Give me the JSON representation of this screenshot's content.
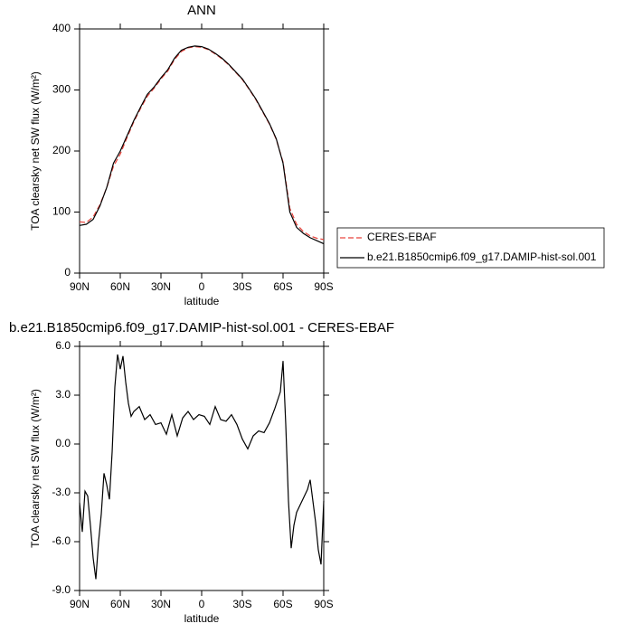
{
  "chart_data": [
    {
      "type": "line",
      "title": "ANN",
      "xlabel": "latitude",
      "ylabel": "TOA clearsky net SW flux (W/m²)",
      "x": [
        90,
        85,
        80,
        75,
        70,
        65,
        60,
        55,
        50,
        45,
        40,
        35,
        30,
        25,
        20,
        15,
        10,
        5,
        0,
        -5,
        -10,
        -15,
        -20,
        -25,
        -30,
        -35,
        -40,
        -45,
        -50,
        -55,
        -60,
        -65,
        -70,
        -75,
        -80,
        -85,
        -90
      ],
      "series": [
        {
          "name": "CERES-EBAF",
          "color": "#e8413a",
          "line_style": "dashed",
          "values": [
            84,
            83,
            92,
            112,
            140,
            175,
            195,
            222,
            248,
            270,
            290,
            303,
            318,
            331,
            350,
            363,
            369,
            371,
            370,
            366,
            359,
            351,
            341,
            329,
            317,
            301,
            284,
            264,
            244,
            219,
            182,
            106,
            80,
            68,
            61,
            57,
            55
          ]
        },
        {
          "name": "b.e21.B1850cmip6.f09_g17.DAMIP-hist-sol.001",
          "color": "#000000",
          "line_style": "solid",
          "values": [
            78,
            80,
            88,
            110,
            140,
            180,
            200,
            225,
            250,
            272,
            293,
            305,
            320,
            333,
            352,
            365,
            370,
            372,
            371,
            367,
            360,
            352,
            342,
            330,
            318,
            302,
            285,
            265,
            245,
            220,
            180,
            100,
            75,
            65,
            58,
            53,
            48
          ]
        }
      ],
      "xlim": [
        90,
        -90
      ],
      "xticks": [
        {
          "value": 90,
          "label": "90N"
        },
        {
          "value": 60,
          "label": "60N"
        },
        {
          "value": 30,
          "label": "30N"
        },
        0,
        {
          "value": -30,
          "label": "30S"
        },
        {
          "value": -60,
          "label": "60S"
        },
        {
          "value": -90,
          "label": "90S"
        }
      ],
      "ylim": [
        0,
        400
      ],
      "yticks": [
        0,
        100,
        200,
        300,
        400
      ],
      "legend": "right"
    },
    {
      "type": "line",
      "title": "b.e21.B1850cmip6.f09_g17.DAMIP-hist-sol.001 - CERES-EBAF",
      "xlabel": "latitude",
      "ylabel": "TOA clearsky net SW flux (W/m²)",
      "x": [
        90,
        88,
        86,
        84,
        82,
        80,
        78,
        76,
        74,
        72,
        70,
        68,
        66,
        64,
        62,
        60,
        58,
        56,
        54,
        52,
        50,
        46,
        42,
        38,
        34,
        30,
        26,
        22,
        18,
        14,
        10,
        6,
        2,
        -2,
        -6,
        -10,
        -14,
        -18,
        -22,
        -26,
        -30,
        -34,
        -38,
        -42,
        -46,
        -50,
        -54,
        -58,
        -60,
        -62,
        -64,
        -66,
        -68,
        -70,
        -74,
        -78,
        -80,
        -82,
        -84,
        -86,
        -88,
        -90
      ],
      "series": [
        {
          "color": "#000000",
          "line_style": "solid",
          "values": [
            -3.6,
            -5.4,
            -2.9,
            -3.2,
            -5.0,
            -7.0,
            -8.3,
            -6.0,
            -4.3,
            -1.8,
            -2.5,
            -3.4,
            -0.5,
            3.5,
            5.5,
            4.6,
            5.4,
            3.8,
            2.5,
            1.7,
            2.0,
            2.3,
            1.5,
            1.8,
            1.2,
            1.3,
            0.6,
            1.8,
            0.5,
            1.6,
            2.0,
            1.5,
            1.8,
            1.7,
            1.2,
            2.3,
            1.5,
            1.4,
            1.8,
            1.2,
            0.3,
            -0.3,
            0.5,
            0.8,
            0.7,
            1.3,
            2.2,
            3.2,
            5.1,
            1.2,
            -3.5,
            -6.4,
            -5.0,
            -4.2,
            -3.5,
            -2.8,
            -2.2,
            -3.5,
            -4.8,
            -6.5,
            -7.4,
            -3.5
          ]
        }
      ],
      "xlim": [
        90,
        -90
      ],
      "xticks": [
        {
          "value": 90,
          "label": "90N"
        },
        {
          "value": 60,
          "label": "60N"
        },
        {
          "value": 30,
          "label": "30N"
        },
        0,
        {
          "value": -30,
          "label": "30S"
        },
        {
          "value": -60,
          "label": "60S"
        },
        {
          "value": -90,
          "label": "90S"
        }
      ],
      "ylim": [
        -9,
        6
      ],
      "yticks": [
        {
          "value": -9,
          "label": "-9.0"
        },
        {
          "value": -6,
          "label": "-6.0"
        },
        {
          "value": -3,
          "label": "-3.0"
        },
        {
          "value": 0,
          "label": "0.0"
        },
        {
          "value": 3,
          "label": "3.0"
        },
        {
          "value": 6,
          "label": "6.0"
        }
      ]
    }
  ]
}
